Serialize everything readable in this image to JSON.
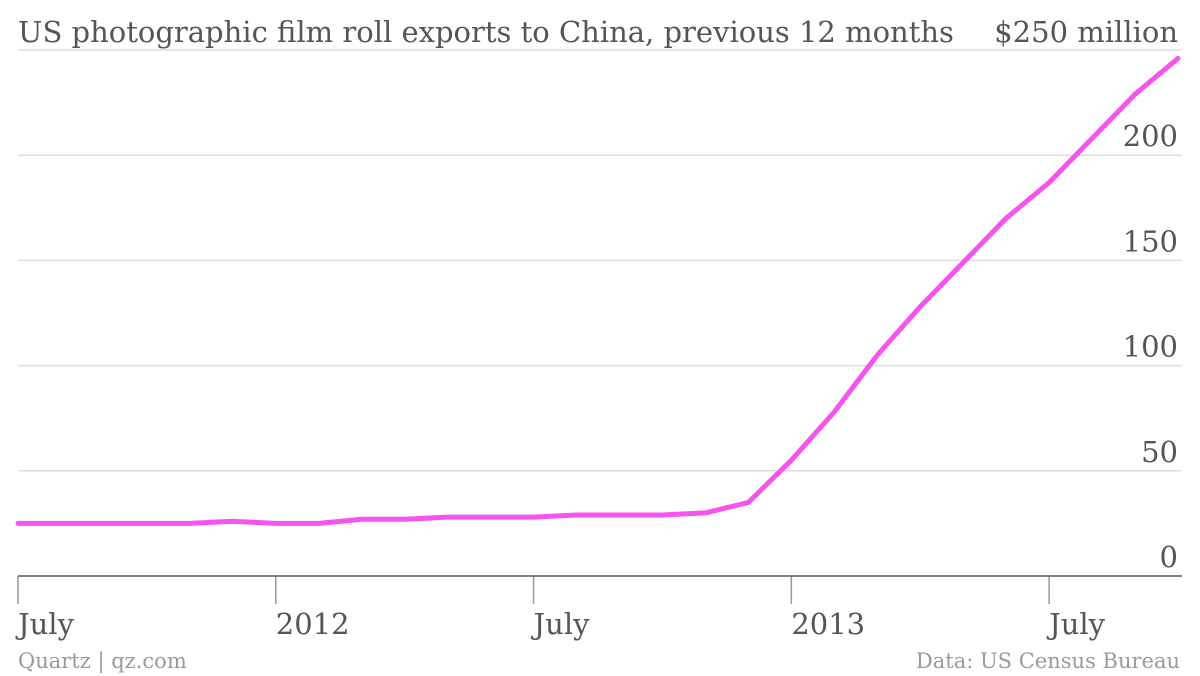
{
  "chart_data": {
    "type": "line",
    "title": "US photographic film roll exports to China, previous 12 months",
    "y_unit_label": "$250 million",
    "xlabel": "",
    "ylabel": "",
    "ylim": [
      0,
      250
    ],
    "xlim": [
      "2011-07",
      "2013-10"
    ],
    "y_ticks": [
      0,
      50,
      100,
      150,
      200
    ],
    "x_ticks": [
      {
        "date": "2011-07",
        "label": "July"
      },
      {
        "date": "2012-01",
        "label": "2012"
      },
      {
        "date": "2012-07",
        "label": "July"
      },
      {
        "date": "2013-01",
        "label": "2013"
      },
      {
        "date": "2013-07",
        "label": "July"
      }
    ],
    "grid": true,
    "colors": {
      "series": "#f653ef",
      "grid": "#dddddd",
      "axis": "#555555"
    },
    "series": [
      {
        "x": [
          "2011-07",
          "2011-08",
          "2011-09",
          "2011-10",
          "2011-11",
          "2011-12",
          "2012-01",
          "2012-02",
          "2012-03",
          "2012-04",
          "2012-05",
          "2012-06",
          "2012-07",
          "2012-08",
          "2012-09",
          "2012-10",
          "2012-11",
          "2012-12",
          "2013-01",
          "2013-02",
          "2013-03",
          "2013-04",
          "2013-05",
          "2013-06",
          "2013-07",
          "2013-08",
          "2013-09",
          "2013-10"
        ],
        "values": [
          25,
          25,
          25,
          25,
          25,
          26,
          25,
          25,
          27,
          27,
          28,
          28,
          28,
          29,
          29,
          29,
          30,
          35,
          55,
          78,
          105,
          128,
          149,
          170,
          187,
          208,
          229,
          246
        ]
      }
    ]
  },
  "footer": {
    "source_left": "Quartz | qz.com",
    "source_right": "Data: US Census Bureau"
  }
}
